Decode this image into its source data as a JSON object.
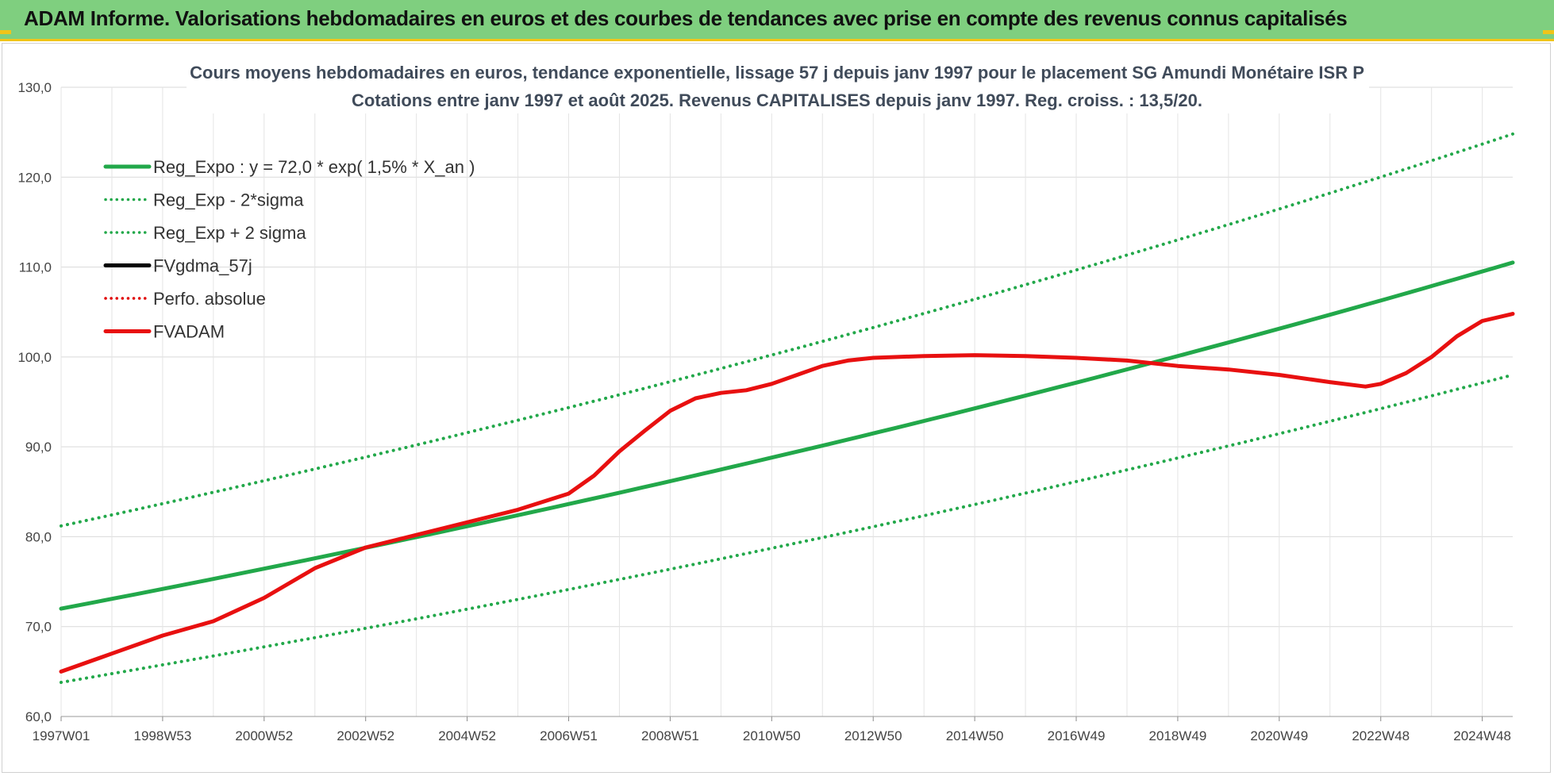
{
  "banner": {
    "title": "ADAM Informe. Valorisations hebdomadaires en euros et des courbes de tendances avec prise en compte des revenus connus capitalisés"
  },
  "chart_data": {
    "type": "line",
    "title_line1": "Cours moyens hebdomadaires en euros, tendance exponentielle, lissage 57 j depuis janv 1997 pour le placement SG Amundi Monétaire ISR P",
    "title_line2": "Cotations entre janv 1997 et août 2025. Revenus CAPITALISES depuis janv 1997. Reg. croiss. : 13,5/20.",
    "xlabel": "",
    "ylabel": "",
    "ylim": [
      60,
      130
    ],
    "yticks": [
      "60,0",
      "70,0",
      "80,0",
      "90,0",
      "100,0",
      "110,0",
      "120,0",
      "130,0"
    ],
    "xlim": [
      1997.0,
      2025.6
    ],
    "xticks": [
      {
        "label": "1997W01",
        "x": 1997.0
      },
      {
        "label": "1998W53",
        "x": 1999.0
      },
      {
        "label": "2000W52",
        "x": 2001.0
      },
      {
        "label": "2002W52",
        "x": 2003.0
      },
      {
        "label": "2004W52",
        "x": 2005.0
      },
      {
        "label": "2006W51",
        "x": 2007.0
      },
      {
        "label": "2008W51",
        "x": 2009.0
      },
      {
        "label": "2010W50",
        "x": 2011.0
      },
      {
        "label": "2012W50",
        "x": 2013.0
      },
      {
        "label": "2014W50",
        "x": 2015.0
      },
      {
        "label": "2016W49",
        "x": 2017.0
      },
      {
        "label": "2018W49",
        "x": 2019.0
      },
      {
        "label": "2020W49",
        "x": 2021.0
      },
      {
        "label": "2022W48",
        "x": 2023.0
      },
      {
        "label": "2024W48",
        "x": 2025.0
      }
    ],
    "grid": true,
    "legend_position": "top-left",
    "series": [
      {
        "name": "Reg_Expo : y = 72,0 * exp( 1,5% *  X_an )",
        "color": "#22a84a",
        "style": "solid",
        "x": [
          1997.0,
          2025.6
        ],
        "y": [
          72.0,
          110.5
        ]
      },
      {
        "name": "Reg_Exp - 2*sigma",
        "color": "#22a84a",
        "style": "dotted",
        "x": [
          1997.0,
          2025.6
        ],
        "y": [
          63.8,
          98.0
        ]
      },
      {
        "name": "Reg_Exp + 2 sigma",
        "color": "#22a84a",
        "style": "dotted",
        "x": [
          1997.0,
          2025.6
        ],
        "y": [
          81.2,
          124.8
        ]
      },
      {
        "name": "FVgdma_57j",
        "color": "#000000",
        "style": "solid",
        "x": [],
        "y": []
      },
      {
        "name": "Perfo. absolue",
        "color": "#e00000",
        "style": "dotted",
        "x": [],
        "y": []
      },
      {
        "name": "FVADAM",
        "color": "#e81010",
        "style": "solid",
        "x": [
          1997.0,
          1998.0,
          1999.0,
          2000.0,
          2001.0,
          2002.0,
          2003.0,
          2004.0,
          2005.0,
          2006.0,
          2007.0,
          2007.5,
          2008.0,
          2008.5,
          2009.0,
          2009.5,
          2010.0,
          2010.5,
          2011.0,
          2011.5,
          2012.0,
          2012.5,
          2013.0,
          2014.0,
          2015.0,
          2016.0,
          2017.0,
          2018.0,
          2019.0,
          2020.0,
          2021.0,
          2022.0,
          2022.7,
          2023.0,
          2023.5,
          2024.0,
          2024.5,
          2025.0,
          2025.6
        ],
        "y": [
          65.0,
          67.0,
          69.0,
          70.6,
          73.2,
          76.5,
          78.8,
          80.2,
          81.6,
          83.0,
          84.8,
          86.8,
          89.5,
          91.8,
          94.0,
          95.4,
          96.0,
          96.3,
          97.0,
          98.0,
          99.0,
          99.6,
          99.9,
          100.1,
          100.2,
          100.1,
          99.9,
          99.6,
          99.0,
          98.6,
          98.0,
          97.2,
          96.7,
          97.0,
          98.2,
          100.0,
          102.3,
          104.0,
          104.8
        ]
      }
    ]
  }
}
